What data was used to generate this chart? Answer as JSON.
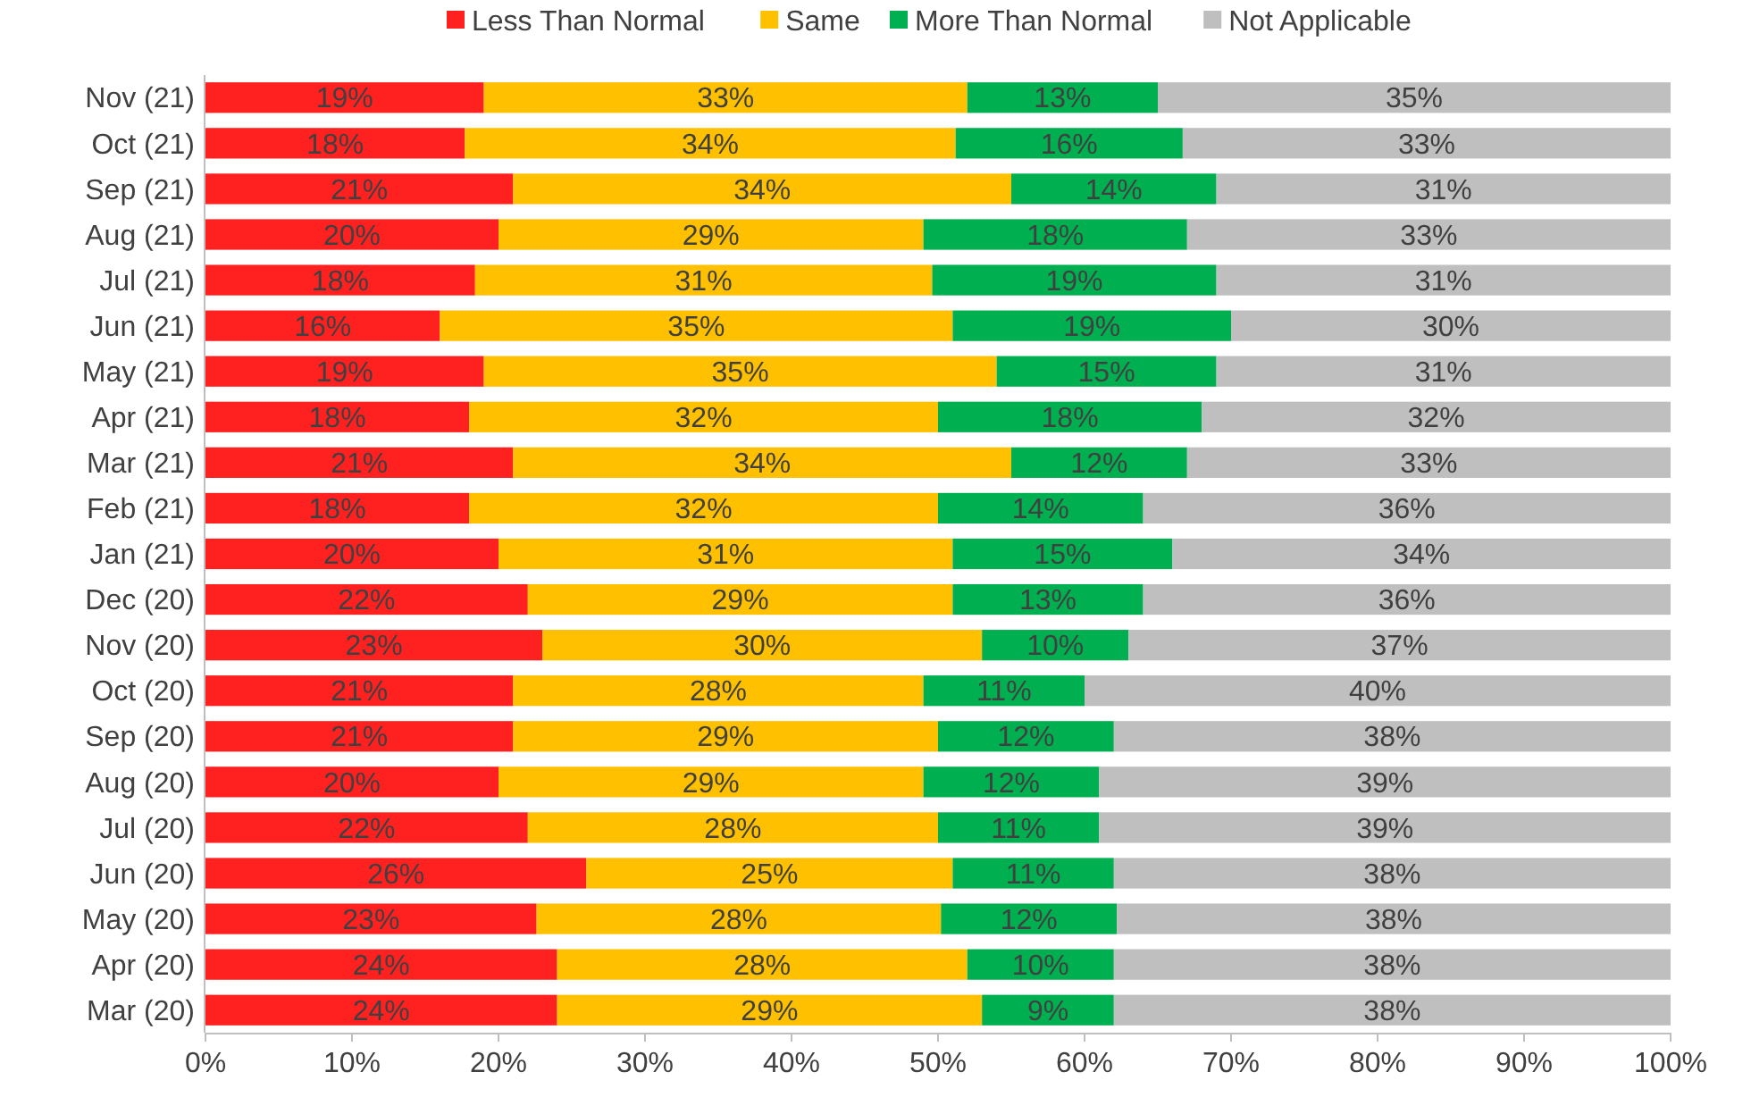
{
  "chart_data": {
    "type": "bar",
    "orientation": "horizontal",
    "stacked": true,
    "legend": "top",
    "grid": false,
    "categories": [
      "Nov (21)",
      "Oct (21)",
      "Sep (21)",
      "Aug (21)",
      "Jul (21)",
      "Jun (21)",
      "May (21)",
      "Apr (21)",
      "Mar (21)",
      "Feb (21)",
      "Jan (21)",
      "Dec (20)",
      "Nov (20)",
      "Oct (20)",
      "Sep (20)",
      "Aug (20)",
      "Jul (20)",
      "Jun (20)",
      "May (20)",
      "Apr (20)",
      "Mar (20)"
    ],
    "xlim": [
      0,
      100
    ],
    "xticks": [
      {
        "value": 0,
        "label": "0%"
      },
      {
        "value": 10,
        "label": "10%"
      },
      {
        "value": 20,
        "label": "20%"
      },
      {
        "value": 30,
        "label": "30%"
      },
      {
        "value": 40,
        "label": "40%"
      },
      {
        "value": 50,
        "label": "50%"
      },
      {
        "value": 60,
        "label": "60%"
      },
      {
        "value": 70,
        "label": "70%"
      },
      {
        "value": 80,
        "label": "80%"
      },
      {
        "value": 90,
        "label": "90%"
      },
      {
        "value": 100,
        "label": "100%"
      }
    ],
    "series": [
      {
        "name": "Less Than Normal",
        "color": "#ff2020",
        "values": [
          19,
          17.7,
          21,
          20,
          18.4,
          16,
          19,
          18,
          21,
          18,
          20,
          22,
          23,
          21,
          21,
          20,
          22,
          26,
          22.6,
          24,
          24
        ],
        "value_labels": [
          "19%",
          "18%",
          "21%",
          "20%",
          "18%",
          "16%",
          "19%",
          "18%",
          "21%",
          "18%",
          "20%",
          "22%",
          "23%",
          "21%",
          "21%",
          "20%",
          "22%",
          "26%",
          "23%",
          "24%",
          "24%"
        ]
      },
      {
        "name": "Same",
        "color": "#ffc000",
        "values": [
          33,
          33.5,
          34,
          29,
          31.2,
          35,
          35,
          32,
          34,
          32,
          31,
          29,
          30,
          28,
          29,
          29,
          28,
          25,
          27.6,
          28,
          29
        ],
        "value_labels": [
          "33%",
          "34%",
          "34%",
          "29%",
          "31%",
          "35%",
          "35%",
          "32%",
          "34%",
          "32%",
          "31%",
          "29%",
          "30%",
          "28%",
          "29%",
          "29%",
          "28%",
          "25%",
          "28%",
          "28%",
          "29%"
        ]
      },
      {
        "name": "More Than Normal",
        "color": "#00b050",
        "values": [
          13,
          15.5,
          14,
          18,
          19.4,
          19,
          15,
          18,
          12,
          14,
          15,
          13,
          10,
          11,
          12,
          12,
          11,
          11,
          12,
          10,
          9
        ],
        "value_labels": [
          "13%",
          "16%",
          "14%",
          "18%",
          "19%",
          "19%",
          "15%",
          "18%",
          "12%",
          "14%",
          "15%",
          "13%",
          "10%",
          "11%",
          "12%",
          "12%",
          "11%",
          "11%",
          "12%",
          "10%",
          "9%"
        ]
      },
      {
        "name": "Not Applicable",
        "color": "#bfbfbf",
        "values": [
          35,
          33.3,
          31,
          33,
          31,
          30,
          31,
          32,
          33,
          36,
          34,
          36,
          37,
          40,
          38,
          39,
          39,
          38,
          37.8,
          38,
          38
        ],
        "value_labels": [
          "35%",
          "33%",
          "31%",
          "33%",
          "31%",
          "30%",
          "31%",
          "32%",
          "33%",
          "36%",
          "34%",
          "36%",
          "37%",
          "40%",
          "38%",
          "39%",
          "39%",
          "38%",
          "38%",
          "38%",
          "38%"
        ]
      }
    ]
  }
}
